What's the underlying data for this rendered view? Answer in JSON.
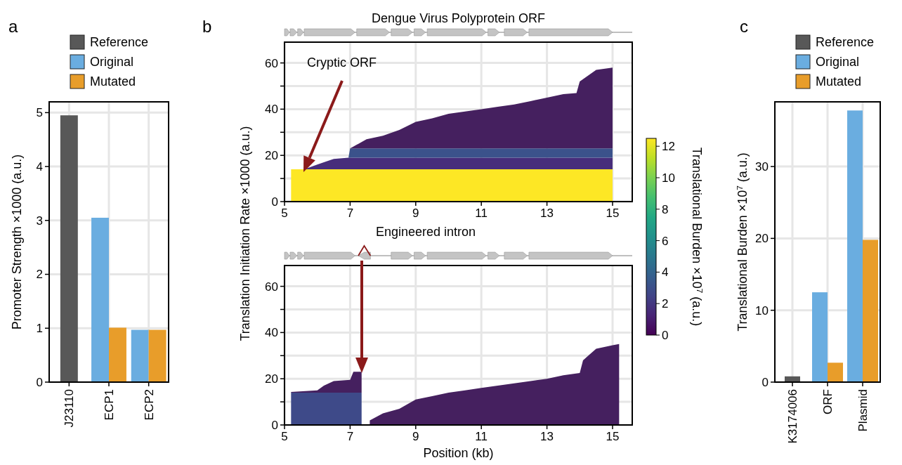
{
  "chart_data": [
    {
      "type": "bar",
      "annotations": [
        "a"
      ],
      "ylabel": "Promoter Strength ×1000 (a.u.)",
      "categories": [
        "J23110",
        "ECP1",
        "ECP2"
      ],
      "series": [
        {
          "name": "Reference",
          "color": "#585858",
          "values": [
            4.95,
            null,
            null
          ]
        },
        {
          "name": "Original",
          "color": "#6aade0",
          "values": [
            null,
            3.05,
            0.97
          ]
        },
        {
          "name": "Mutated",
          "color": "#e89d2a",
          "values": [
            null,
            1.01,
            0.97
          ]
        }
      ],
      "ylim": [
        0,
        5.2
      ],
      "yticks": [
        0,
        1,
        2,
        3,
        4,
        5
      ],
      "grid": true,
      "legend": "top"
    },
    {
      "type": "area",
      "stacked": true,
      "title": "Dengue Virus Polyprotein ORF",
      "ylabel": "Translation Initiation Rate ×1000 (a.u.)",
      "annotations": [
        "b",
        "Cryptic ORF"
      ],
      "x": [
        5.2,
        5.6,
        6.0,
        6.2,
        6.5,
        6.95,
        7.0,
        7.5,
        8.0,
        8.5,
        9.0,
        9.5,
        10.0,
        10.5,
        11.0,
        11.5,
        12.0,
        12.5,
        13.0,
        13.5,
        13.9,
        14.0,
        14.5,
        15.0
      ],
      "series": [
        {
          "color": "#fde725",
          "values": [
            14,
            14,
            14,
            14,
            14,
            14,
            14,
            14,
            14,
            14,
            14,
            14,
            14,
            14,
            14,
            14,
            14,
            14,
            14,
            14,
            14,
            14,
            14,
            14
          ]
        },
        {
          "color": "#472d7b",
          "values": [
            0,
            0,
            2,
            3,
            4.5,
            5,
            5,
            5,
            5,
            5,
            5,
            5,
            5,
            5,
            5,
            5,
            5,
            5,
            5,
            5,
            5,
            5,
            5,
            5
          ]
        },
        {
          "color": "#3b528b",
          "values": [
            0,
            0,
            0,
            0,
            0,
            0,
            4,
            4,
            4,
            4,
            4,
            4,
            4,
            4,
            4,
            4,
            4,
            4,
            4,
            4,
            4,
            4,
            4,
            4
          ]
        },
        {
          "color": "#45205f",
          "values": [
            0,
            0,
            0,
            0,
            0,
            0,
            0,
            4,
            5.5,
            8,
            11.5,
            13,
            15,
            16,
            17,
            18,
            19,
            20.5,
            22,
            23.5,
            24,
            29,
            34,
            35
          ]
        }
      ],
      "xlim": [
        5,
        15.6
      ],
      "xticks": [
        5,
        7,
        9,
        11,
        13,
        15
      ],
      "ylim": [
        0,
        69
      ],
      "yticks": [
        0,
        {
          "value": 10,
          "label": null
        },
        20,
        {
          "value": 30,
          "label": null
        },
        40,
        {
          "value": 50,
          "label": null
        },
        60
      ],
      "grid": true,
      "clabel": "Translational Burden ×10$^{7}$ (a.u.)",
      "clim": [
        0,
        12.5
      ],
      "cticks": [
        0,
        2,
        4,
        6,
        8,
        10,
        12
      ]
    },
    {
      "type": "area",
      "stacked": true,
      "xlabel": "Position (kb)",
      "annotations": [
        "Engineered intron"
      ],
      "series": [
        {
          "color": "#3e4a89",
          "x": [
            5.2,
            6.0,
            6.2,
            6.5,
            7.0,
            7.1,
            7.35
          ],
          "values": [
            14,
            14,
            14,
            14,
            14,
            14,
            14
          ]
        },
        {
          "color": "#45205f",
          "x": [
            5.2,
            6.0,
            6.2,
            6.5,
            7.0,
            7.1,
            7.35
          ],
          "values": [
            0.3,
            1,
            3,
            5,
            5.5,
            9,
            9
          ]
        },
        {
          "color": "#45205f",
          "x": [
            7.6,
            8.0,
            8.5,
            9.0,
            9.5,
            10.0,
            10.5,
            11.0,
            11.5,
            12.0,
            12.5,
            13.0,
            13.5,
            14.0,
            14.1,
            14.5,
            15.0,
            15.2
          ],
          "values": [
            2,
            5,
            7,
            11,
            12.5,
            14,
            15,
            16,
            17,
            18,
            19,
            20,
            21.5,
            22.5,
            28,
            33,
            34.5,
            35
          ]
        }
      ],
      "xlim": [
        5,
        15.6
      ],
      "xticks": [
        5,
        7,
        9,
        11,
        13,
        15
      ],
      "ylim": [
        0,
        69
      ],
      "yticks": [
        0,
        {
          "value": 10,
          "label": null
        },
        20,
        {
          "value": 30,
          "label": null
        },
        40,
        {
          "value": 50,
          "label": null
        },
        60
      ],
      "grid": true
    },
    {
      "type": "bar",
      "annotations": [
        "c"
      ],
      "ylabel": "Translational Burden ×10$^{7}$ (a.u.)",
      "categories": [
        "K3174006",
        "ORF",
        "Plasmid"
      ],
      "series": [
        {
          "name": "Reference",
          "color": "#585858",
          "values": [
            0.8,
            null,
            null
          ]
        },
        {
          "name": "Original",
          "color": "#6aade0",
          "values": [
            null,
            12.5,
            37.8
          ]
        },
        {
          "name": "Mutated",
          "color": "#e89d2a",
          "values": [
            null,
            2.7,
            19.8
          ]
        }
      ],
      "ylim": [
        0,
        39
      ],
      "yticks": [
        0,
        10,
        20,
        30
      ],
      "grid": true,
      "legend": "top"
    }
  ]
}
